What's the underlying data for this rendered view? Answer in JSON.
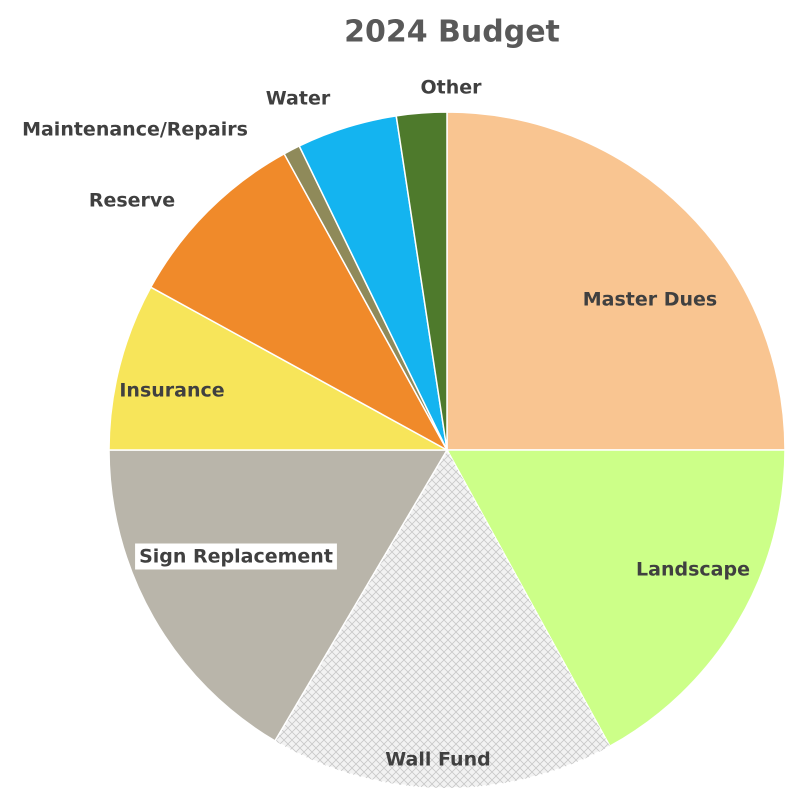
{
  "chart_data": {
    "type": "pie",
    "title": "2024 Budget",
    "categories": [
      "Master Dues",
      "Landscape",
      "Wall Fund",
      "Sign Replacement",
      "Insurance",
      "Reserve",
      "Maintenance/Repairs",
      "Water",
      "Other"
    ],
    "values": [
      25,
      17,
      16.5,
      16.5,
      8,
      9,
      0.8,
      4.8,
      2.4
    ],
    "colors": [
      "#f9c591",
      "#ccff88",
      "#f2f2f2",
      "#b9b5aa",
      "#f7e55a",
      "#f08a2a",
      "#8f8a5a",
      "#14b4f0",
      "#4e7a2c"
    ]
  }
}
